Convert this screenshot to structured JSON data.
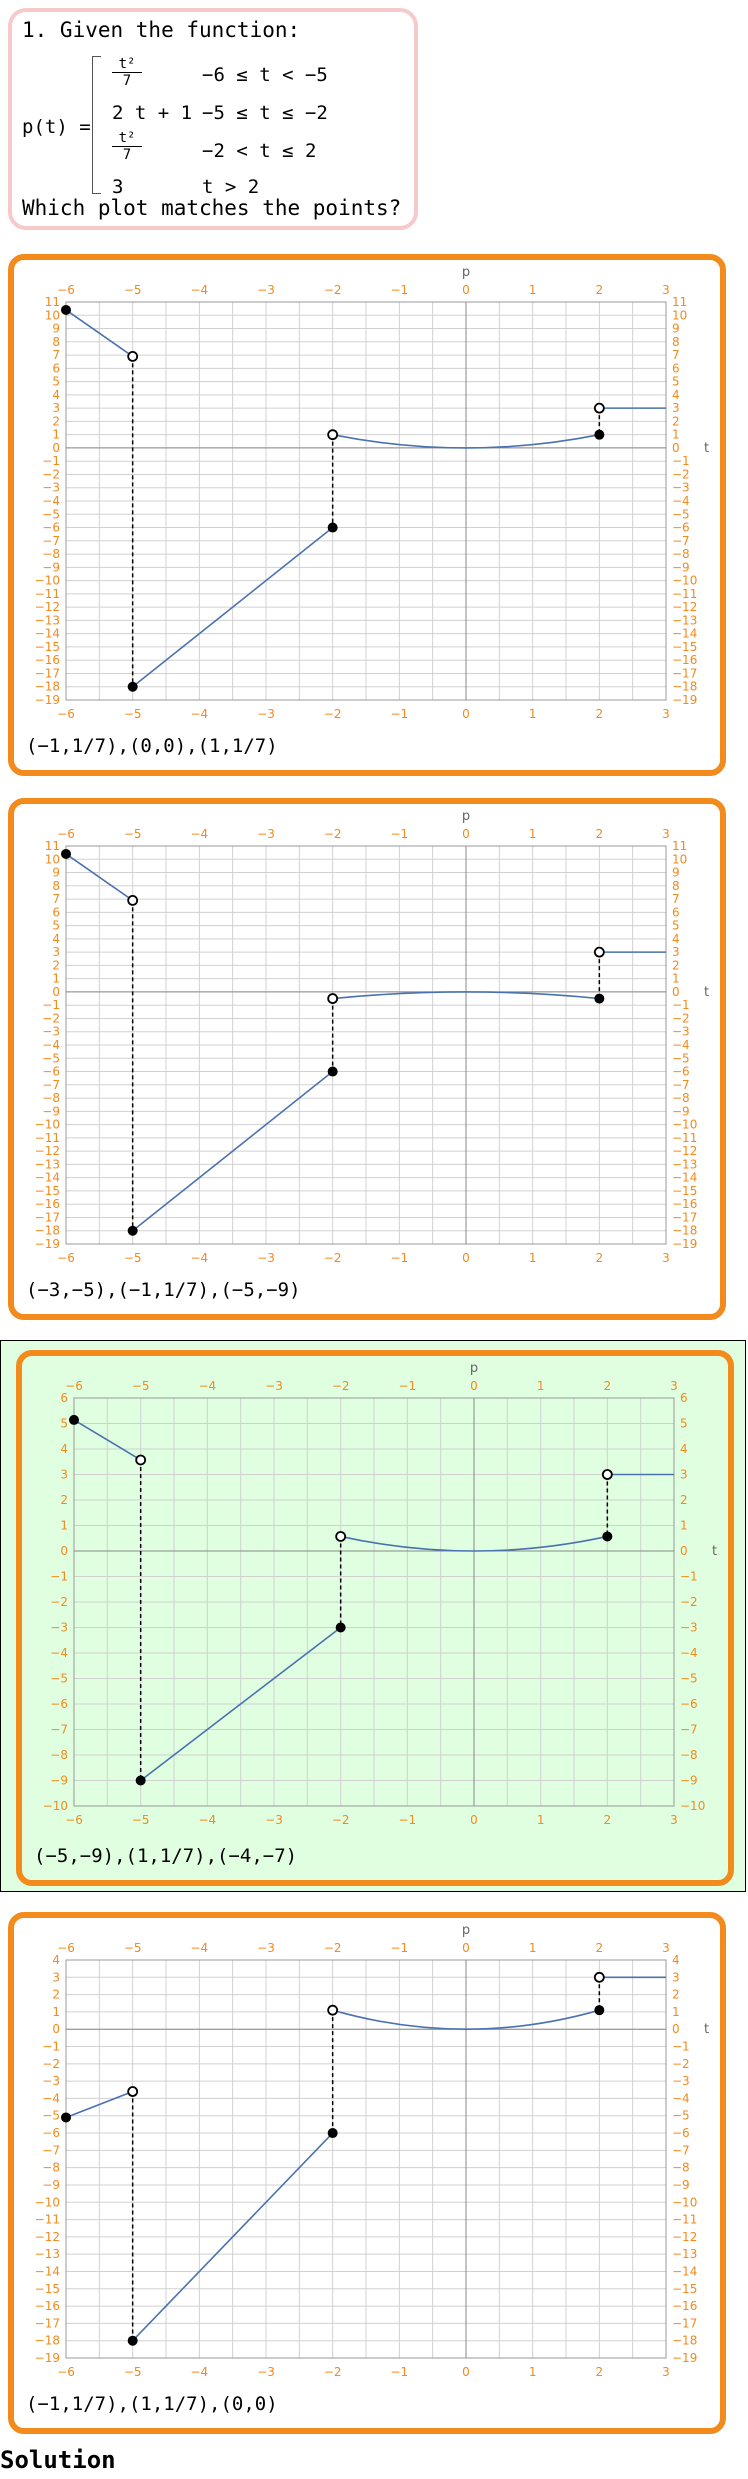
{
  "question": {
    "title": "1. Given the function:",
    "function_name": "p(t) =",
    "cases": [
      {
        "expr_num": "t²",
        "expr_den": "7",
        "cond": "−6 ≤ t < −5"
      },
      {
        "expr": "2 t + 1",
        "cond": "−5 ≤ t ≤ −2"
      },
      {
        "expr_num": "t²",
        "expr_den": "7",
        "cond": "−2 < t ≤ 2"
      },
      {
        "expr": "3",
        "cond": "t > 2"
      }
    ],
    "footer": "Which plot matches the points?"
  },
  "options": [
    {
      "caption": "(−1,1/7),(0,0),(1,1/7)",
      "correct": false,
      "axis_label_y": "p",
      "axis_label_x": "t",
      "chart_data": {
        "type": "line",
        "xlim": [
          -6,
          3
        ],
        "ylim": [
          -19,
          11
        ],
        "series": [
          {
            "kind": "curve",
            "fn": "t2over7_shift",
            "x": [
              -6,
              -5
            ],
            "points": [
              [
                -6,
                10.4
              ],
              [
                -5,
                6.9
              ]
            ]
          },
          {
            "kind": "line",
            "points": [
              [
                -5,
                -18
              ],
              [
                -2,
                -6
              ]
            ]
          },
          {
            "kind": "curve",
            "points": [
              [
                -2,
                1.0
              ],
              [
                0,
                0
              ],
              [
                2,
                1.0
              ]
            ]
          },
          {
            "kind": "line",
            "points": [
              [
                2,
                3
              ],
              [
                3,
                3
              ]
            ]
          }
        ],
        "filled": [
          [
            -6,
            10.4
          ],
          [
            -5,
            -18
          ],
          [
            -2,
            -6
          ],
          [
            2,
            1.0
          ]
        ],
        "open": [
          [
            -5,
            6.9
          ],
          [
            -2,
            1.0
          ],
          [
            2,
            3
          ]
        ],
        "dashed": [
          [
            [
              -5,
              6.9
            ],
            [
              -5,
              -18
            ]
          ],
          [
            [
              -2,
              1.0
            ],
            [
              -2,
              -6
            ]
          ],
          [
            [
              2,
              3
            ],
            [
              2,
              1.0
            ]
          ]
        ]
      }
    },
    {
      "caption": "(−3,−5),(−1,1/7),(−5,−9)",
      "correct": false,
      "axis_label_y": "p",
      "axis_label_x": "t",
      "chart_data": {
        "type": "line",
        "xlim": [
          -6,
          3
        ],
        "ylim": [
          -19,
          11
        ],
        "series": [
          {
            "kind": "line",
            "points": [
              [
                -6,
                10.4
              ],
              [
                -5,
                6.9
              ]
            ]
          },
          {
            "kind": "line",
            "points": [
              [
                -5,
                -18
              ],
              [
                -2,
                -6
              ]
            ]
          },
          {
            "kind": "curve",
            "points": [
              [
                -2,
                -0.5
              ],
              [
                0,
                0
              ],
              [
                2,
                -0.5
              ]
            ]
          },
          {
            "kind": "line",
            "points": [
              [
                2,
                3
              ],
              [
                3,
                3
              ]
            ]
          }
        ],
        "filled": [
          [
            -6,
            10.4
          ],
          [
            -5,
            -18
          ],
          [
            -2,
            -6
          ],
          [
            2,
            -0.5
          ]
        ],
        "open": [
          [
            -5,
            6.9
          ],
          [
            -2,
            -0.5
          ],
          [
            2,
            3
          ]
        ],
        "dashed": [
          [
            [
              -5,
              6.9
            ],
            [
              -5,
              -18
            ]
          ],
          [
            [
              -2,
              -0.5
            ],
            [
              -2,
              -6
            ]
          ],
          [
            [
              2,
              3
            ],
            [
              2,
              -0.5
            ]
          ]
        ]
      }
    },
    {
      "caption": "(−5,−9),(1,1/7),(−4,−7)",
      "correct": true,
      "axis_label_y": "p",
      "axis_label_x": "t",
      "chart_data": {
        "type": "line",
        "xlim": [
          -6,
          3
        ],
        "ylim": [
          -10,
          6
        ],
        "series": [
          {
            "kind": "line",
            "points": [
              [
                -6,
                5.14
              ],
              [
                -5,
                3.57
              ]
            ]
          },
          {
            "kind": "line",
            "points": [
              [
                -5,
                -9
              ],
              [
                -2,
                -3
              ]
            ]
          },
          {
            "kind": "curve",
            "points": [
              [
                -2,
                0.57
              ],
              [
                0,
                0
              ],
              [
                2,
                0.57
              ]
            ]
          },
          {
            "kind": "line",
            "points": [
              [
                2,
                3
              ],
              [
                3,
                3
              ]
            ]
          }
        ],
        "filled": [
          [
            -6,
            5.14
          ],
          [
            -5,
            -9
          ],
          [
            -2,
            -3
          ],
          [
            2,
            0.57
          ]
        ],
        "open": [
          [
            -5,
            3.57
          ],
          [
            -2,
            0.57
          ],
          [
            2,
            3
          ]
        ],
        "dashed": [
          [
            [
              -5,
              3.57
            ],
            [
              -5,
              -9
            ]
          ],
          [
            [
              -2,
              0.57
            ],
            [
              -2,
              -3
            ]
          ],
          [
            [
              2,
              3
            ],
            [
              2,
              0.57
            ]
          ]
        ]
      }
    },
    {
      "caption": "(−1,1/7),(1,1/7),(0,0)",
      "correct": false,
      "axis_label_y": "p",
      "axis_label_x": "t",
      "chart_data": {
        "type": "line",
        "xlim": [
          -6,
          3
        ],
        "ylim": [
          -19,
          4
        ],
        "series": [
          {
            "kind": "line",
            "points": [
              [
                -6,
                -5.1
              ],
              [
                -5,
                -3.6
              ]
            ]
          },
          {
            "kind": "line",
            "points": [
              [
                -5,
                -18
              ],
              [
                -2,
                -6
              ]
            ]
          },
          {
            "kind": "curve",
            "points": [
              [
                -2,
                1.1
              ],
              [
                0,
                0
              ],
              [
                2,
                1.1
              ]
            ]
          },
          {
            "kind": "line",
            "points": [
              [
                2,
                3
              ],
              [
                3,
                3
              ]
            ]
          }
        ],
        "filled": [
          [
            -6,
            -5.1
          ],
          [
            -5,
            -18
          ],
          [
            -2,
            -6
          ],
          [
            2,
            1.1
          ]
        ],
        "open": [
          [
            -5,
            -3.6
          ],
          [
            -2,
            1.1
          ],
          [
            2,
            3
          ]
        ],
        "dashed": [
          [
            [
              -5,
              -3.6
            ],
            [
              -5,
              -18
            ]
          ],
          [
            [
              -2,
              1.1
            ],
            [
              -2,
              -6
            ]
          ],
          [
            [
              2,
              3
            ],
            [
              2,
              1.1
            ]
          ]
        ]
      }
    }
  ],
  "solution_label": "Solution",
  "colors": {
    "orange": "#f28a1c",
    "tick": "#f28a1c",
    "curve": "#4a72b0",
    "grid": "#d0d0d0",
    "correct_bg": "#e0ffe0"
  }
}
